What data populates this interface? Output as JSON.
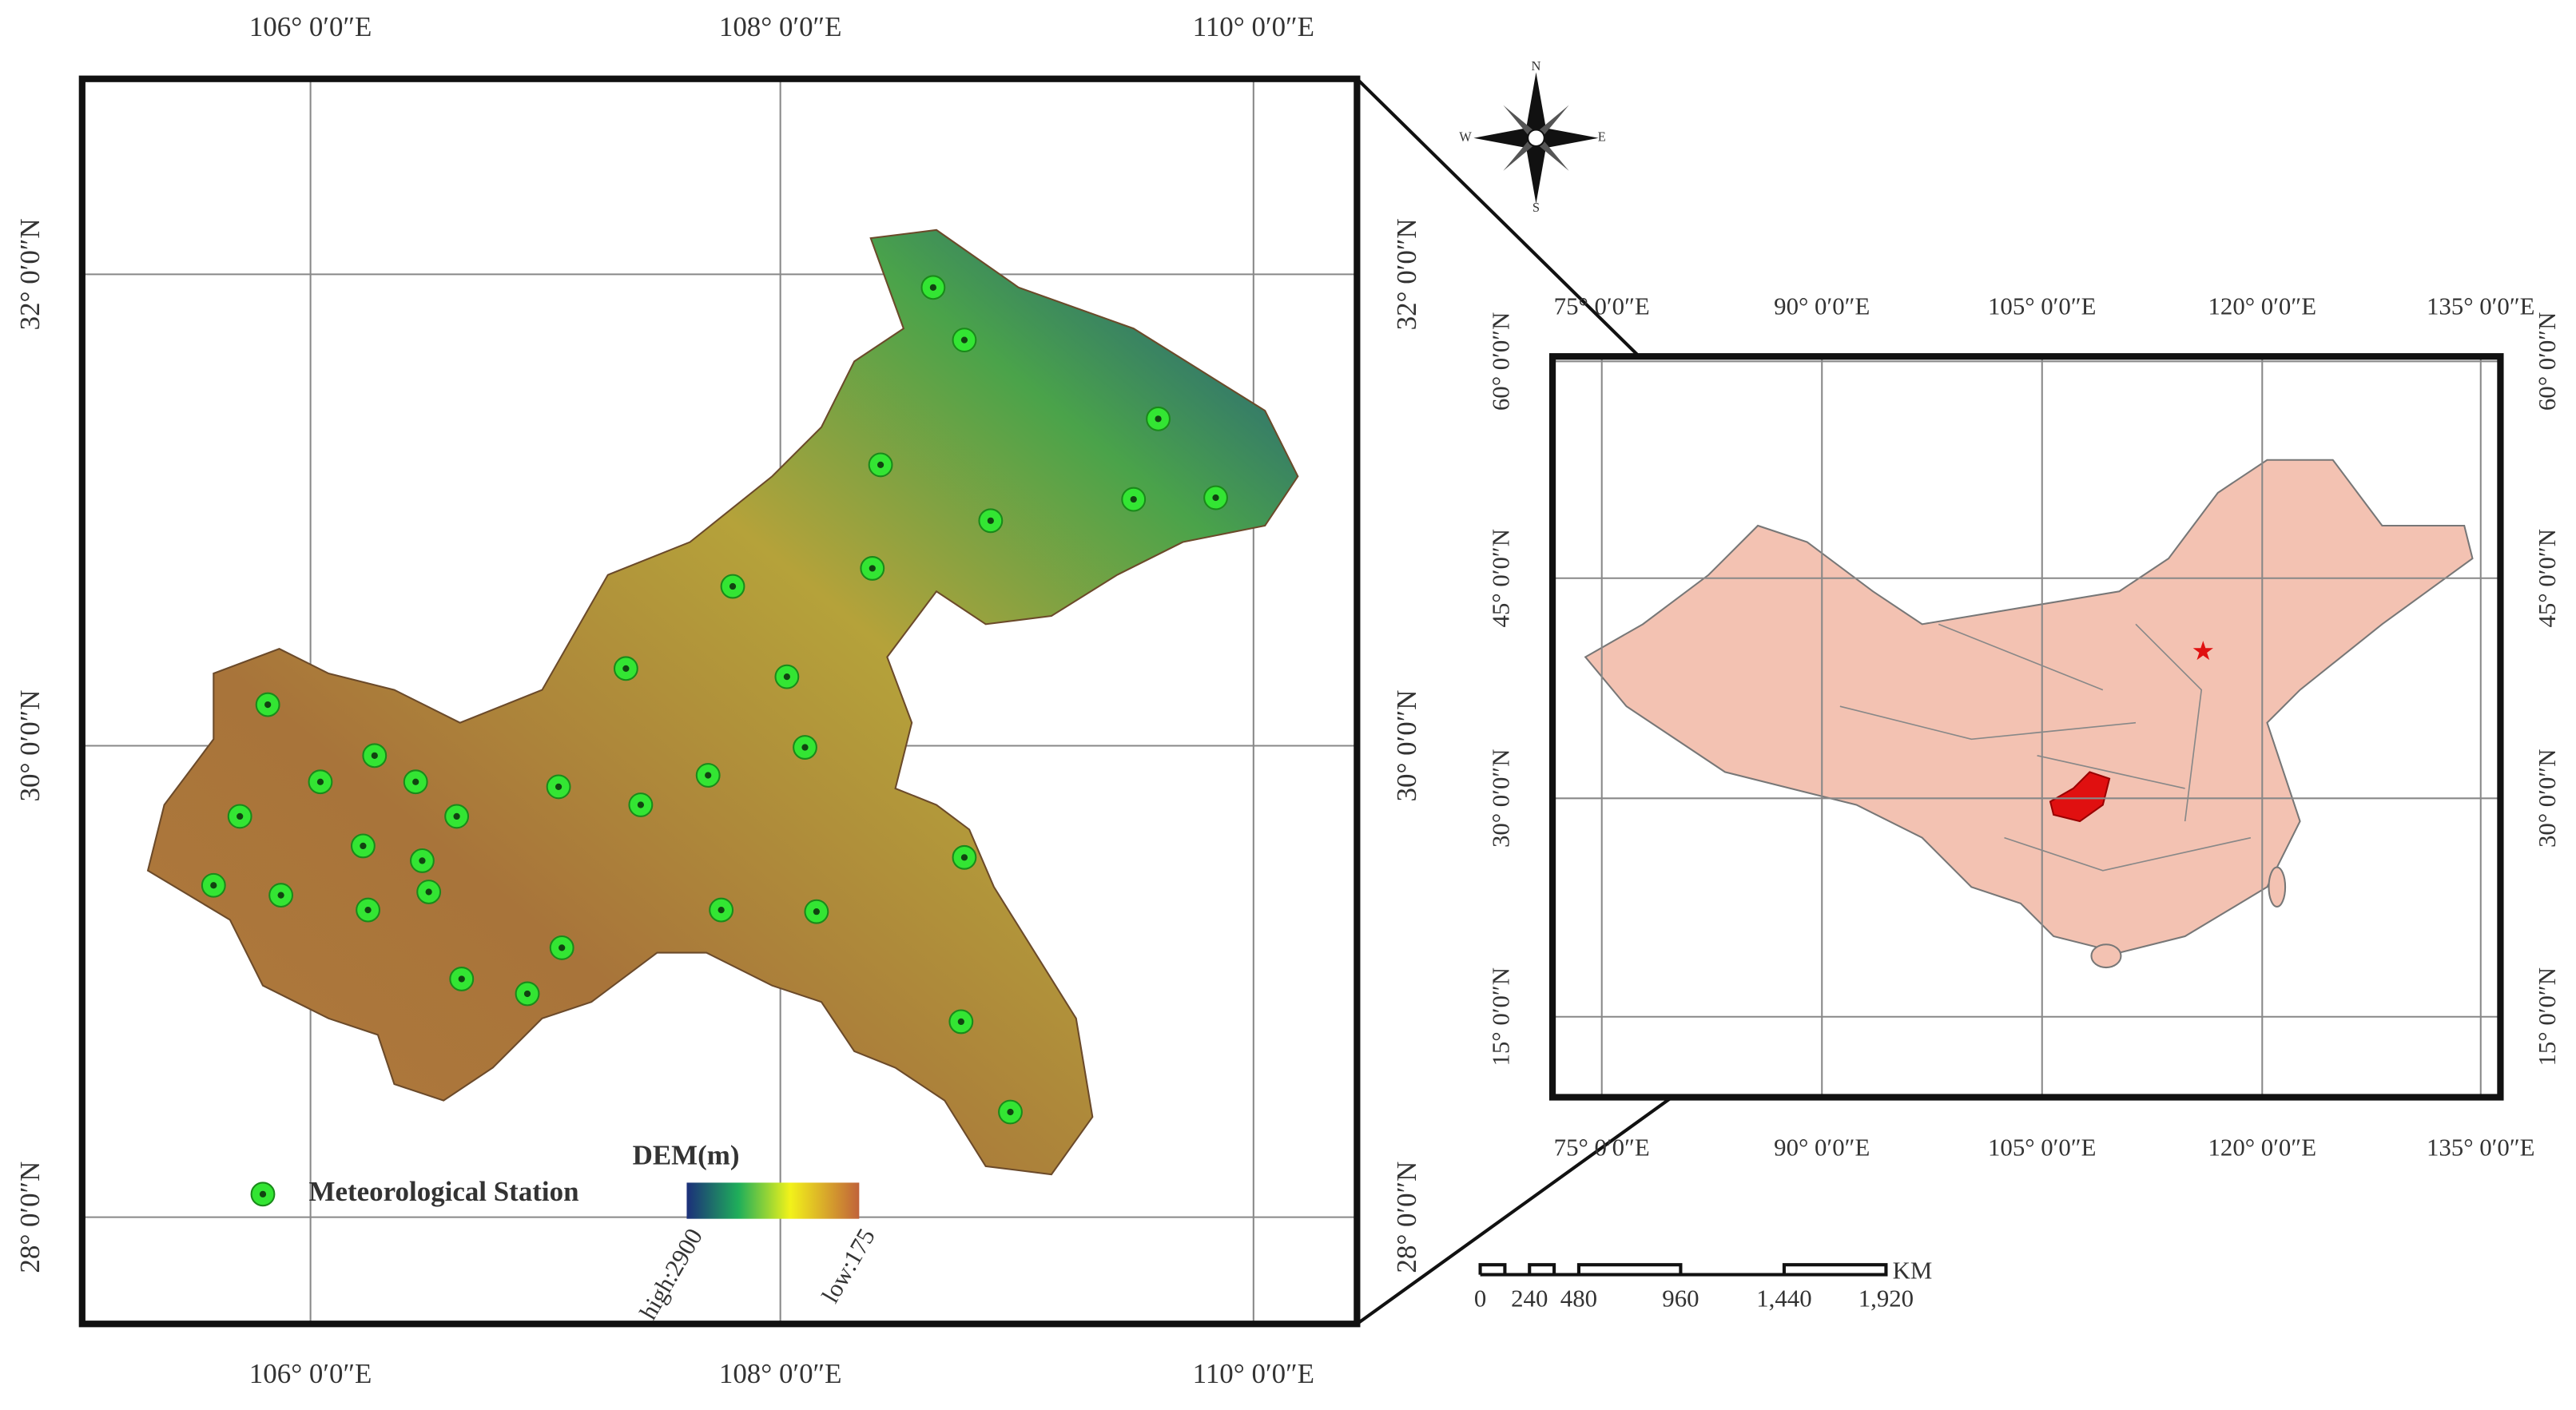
{
  "left_map": {
    "top_labels": [
      "106° 0′0″E",
      "108° 0′0″E",
      "110° 0′0″E"
    ],
    "bottom_labels": [
      "106° 0′0″E",
      "108° 0′0″E",
      "110° 0′0″E"
    ],
    "left_labels": [
      "32° 0′0″N",
      "30° 0′0″N",
      "28° 0′0″N"
    ],
    "right_labels": [
      "32° 0′0″N",
      "30° 0′0″N",
      "28° 0′0″N"
    ],
    "legend": {
      "station_label": "Meteorological Station",
      "dem_title": "DEM(m)",
      "dem_high": "high:2900",
      "dem_low": "low:175"
    }
  },
  "right_map": {
    "top_labels": [
      "75° 0′0″E",
      "90° 0′0″E",
      "105° 0′0″E",
      "120° 0′0″E",
      "135° 0′0″E"
    ],
    "bottom_labels": [
      "75° 0′0″E",
      "90° 0′0″E",
      "105° 0′0″E",
      "120° 0′0″E",
      "135° 0′0″E"
    ],
    "left_labels": [
      "60° 0′0″N",
      "45° 0′0″N",
      "30° 0′0″N",
      "15° 0′0″N"
    ],
    "right_labels": [
      "60° 0′0″N",
      "45° 0′0″N",
      "30° 0′0″N",
      "15° 0′0″N"
    ]
  },
  "compass": {
    "north": "N",
    "south": "S",
    "east": "E",
    "west": "W"
  },
  "scale_bar": {
    "labels": [
      "0",
      "240",
      "480",
      "960",
      "1,440",
      "1,920"
    ],
    "unit": "KM"
  }
}
